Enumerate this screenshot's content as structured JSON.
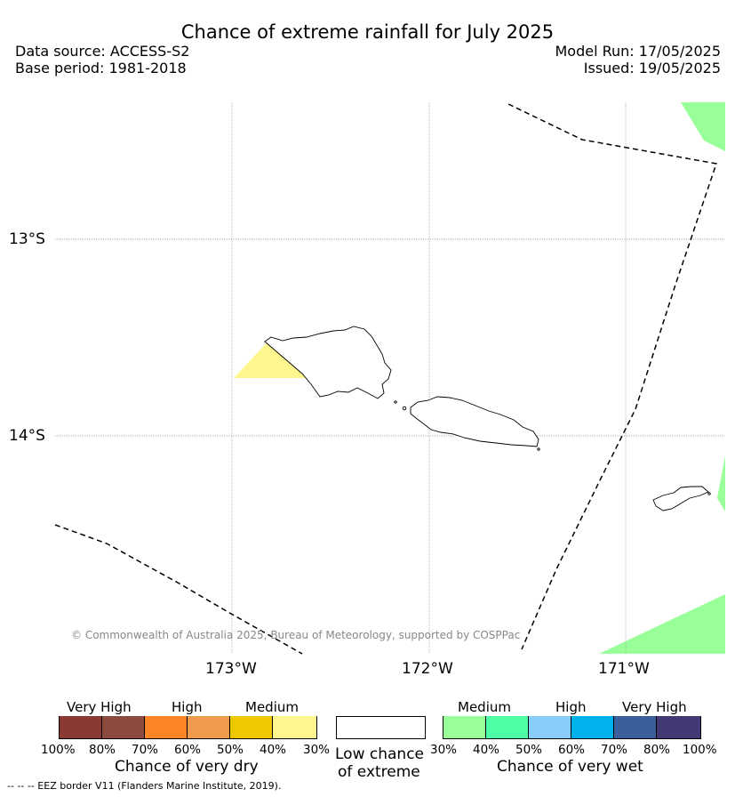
{
  "header": {
    "title": "Chance of extreme rainfall for July 2025",
    "data_source": "Data source: ACCESS-S2",
    "base_period": "Base period: 1981-2018",
    "model_run": "Model Run: 17/05/2025",
    "issued": "Issued: 19/05/2025"
  },
  "map": {
    "lat_labels": [
      "13°S",
      "14°S"
    ],
    "lon_labels": [
      "173°W",
      "172°W",
      "171°W"
    ],
    "copyright": "© Commonwealth of Australia 2025, Bureau of Meteorology, supported by COSPPac",
    "border_line": "dashed",
    "shading_colors": {
      "dry_medium": "#fff68f",
      "wet_medium": "#99ff99"
    }
  },
  "legend": {
    "dry": {
      "categories": [
        "Very High",
        "High",
        "Medium"
      ],
      "ticks": [
        "100%",
        "80%",
        "70%",
        "60%",
        "50%",
        "40%",
        "30%"
      ],
      "title": "Chance of very dry",
      "colors": [
        "#8b3a33",
        "#8b4b3e",
        "#ff8427",
        "#ef9b4d",
        "#f0c800",
        "#fff68f"
      ]
    },
    "low": {
      "line1": "Low chance",
      "line2": "of extreme"
    },
    "wet": {
      "categories": [
        "Medium",
        "High",
        "Very High"
      ],
      "ticks": [
        "30%",
        "40%",
        "50%",
        "60%",
        "70%",
        "80%",
        "100%"
      ],
      "title": "Chance of very wet",
      "colors": [
        "#99ff99",
        "#4efea4",
        "#88ccfa",
        "#00b2ec",
        "#3a5f9a",
        "#413a74"
      ]
    }
  },
  "footnote": "-- -- -- EEZ border V11 (Flanders Marine Institute, 2019)."
}
